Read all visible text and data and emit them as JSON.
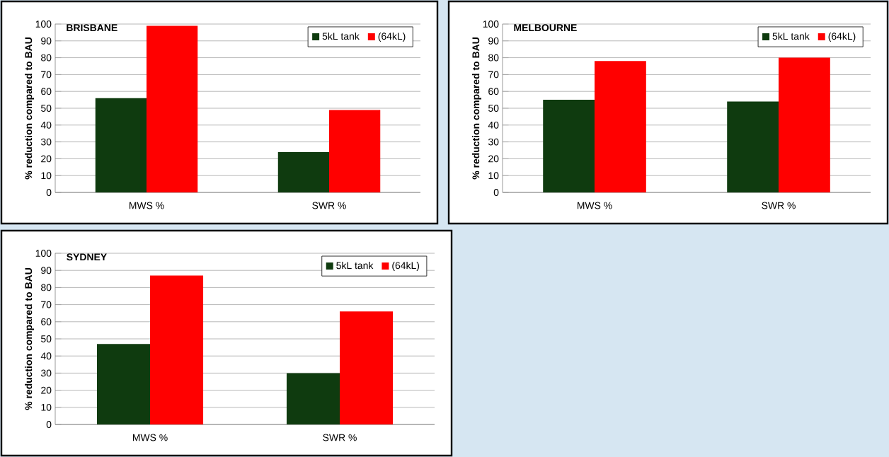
{
  "chart_data": [
    {
      "type": "bar",
      "title": "BRISBANE",
      "ylabel": "% reduction compared to BAU",
      "categories": [
        "MWS %",
        "SWR %"
      ],
      "series": [
        {
          "name": "5kL tank",
          "color": "#0f3b0f",
          "values": [
            56,
            24
          ]
        },
        {
          "name": "(64kL)",
          "color": "#ff0000",
          "values": [
            99,
            49
          ]
        }
      ],
      "ylim": [
        0,
        100
      ],
      "yticks": [
        0,
        10,
        20,
        30,
        40,
        50,
        60,
        70,
        80,
        90,
        100
      ],
      "grid": "y",
      "legend": "top right"
    },
    {
      "type": "bar",
      "title": "MELBOURNE",
      "ylabel": "% reduction compared to BAU",
      "categories": [
        "MWS %",
        "SWR %"
      ],
      "series": [
        {
          "name": "5kL tank",
          "color": "#0f3b0f",
          "values": [
            55,
            54
          ]
        },
        {
          "name": "(64kL)",
          "color": "#ff0000",
          "values": [
            78,
            80
          ]
        }
      ],
      "ylim": [
        0,
        100
      ],
      "yticks": [
        0,
        10,
        20,
        30,
        40,
        50,
        60,
        70,
        80,
        90,
        100
      ],
      "grid": "y",
      "legend": "top right"
    },
    {
      "type": "bar",
      "title": "SYDNEY",
      "ylabel": "% reduction compared to BAU",
      "categories": [
        "MWS %",
        "SWR %"
      ],
      "series": [
        {
          "name": "5kL tank",
          "color": "#0f3b0f",
          "values": [
            47,
            30
          ]
        },
        {
          "name": "(64kL)",
          "color": "#ff0000",
          "values": [
            87,
            66
          ]
        }
      ],
      "ylim": [
        0,
        100
      ],
      "yticks": [
        0,
        10,
        20,
        30,
        40,
        50,
        60,
        70,
        80,
        90,
        100
      ],
      "grid": "y",
      "legend": "top right"
    }
  ]
}
